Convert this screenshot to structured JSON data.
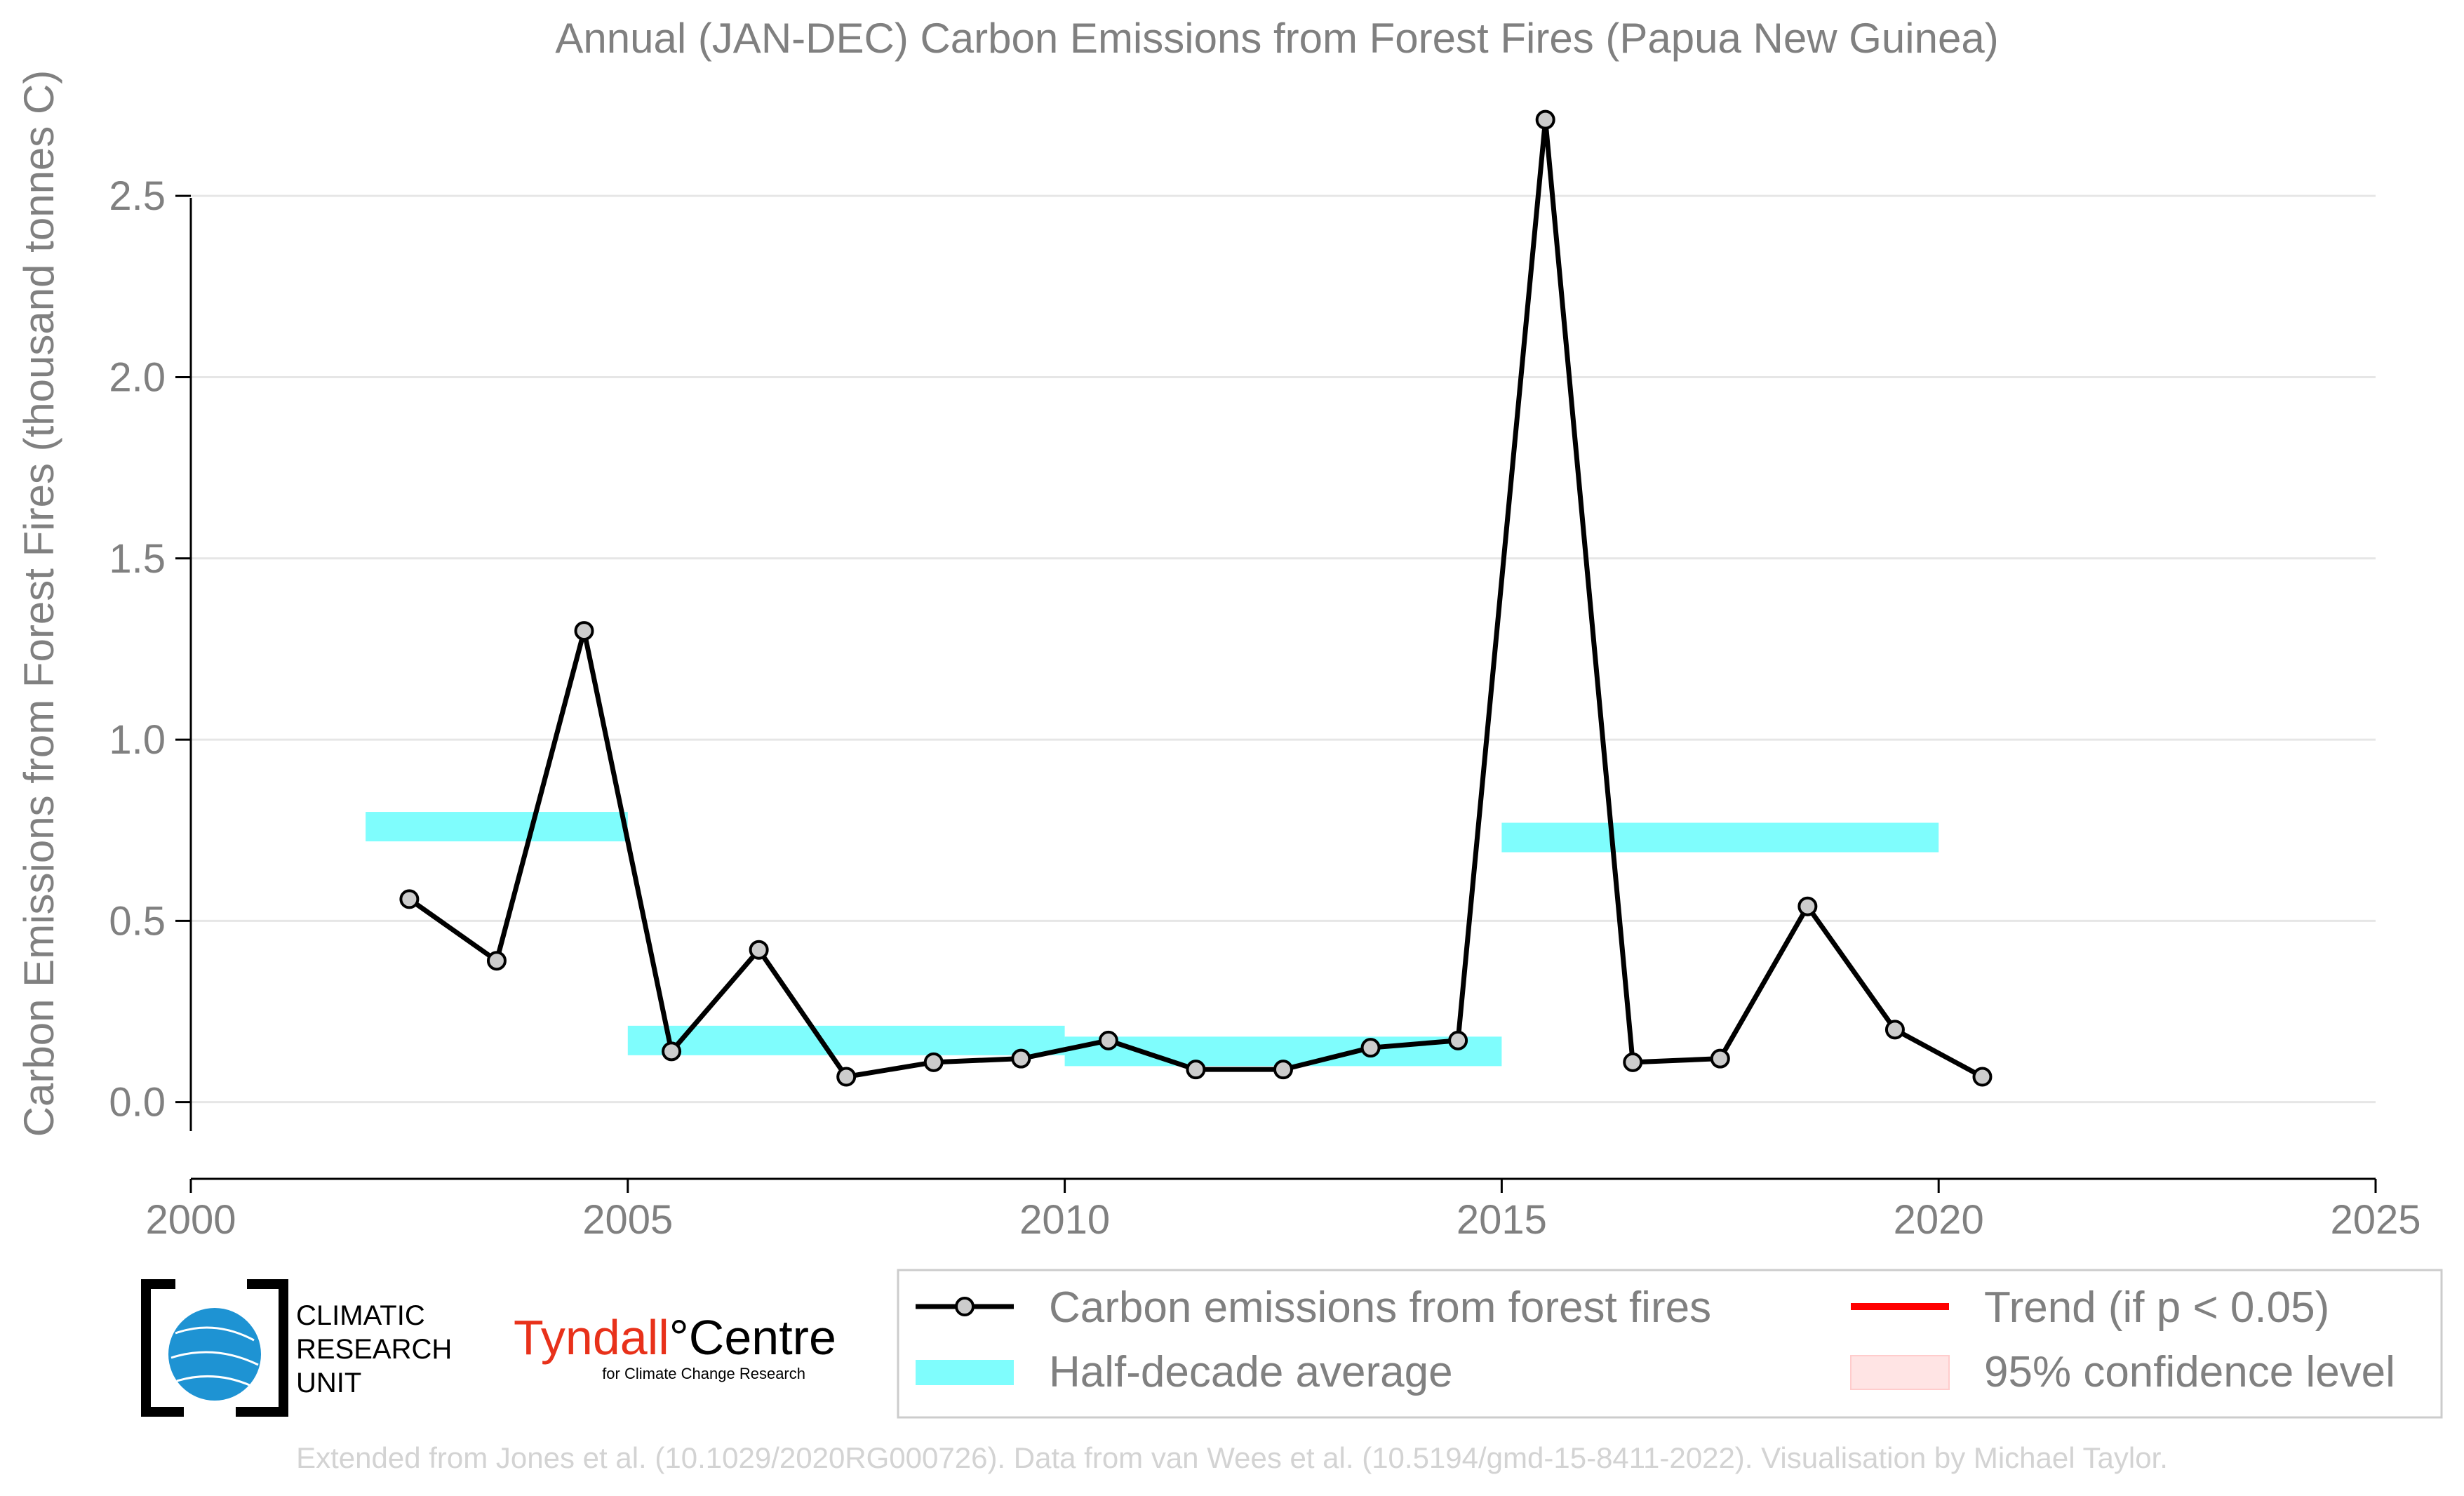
{
  "chart_data": {
    "type": "line",
    "title": "Annual (JAN-DEC) Carbon Emissions from Forest Fires (Papua New Guinea)",
    "xlabel": "",
    "ylabel": "Carbon Emissions from Forest Fires (thousand tonnes C)",
    "xlim": [
      2000,
      2025
    ],
    "ylim": [
      -0.08,
      2.75
    ],
    "x_ticks": [
      2000,
      2005,
      2010,
      2015,
      2020,
      2025
    ],
    "y_ticks": [
      0.0,
      0.5,
      1.0,
      1.5,
      2.0,
      2.5
    ],
    "y_tick_labels": [
      "0.0",
      "0.5",
      "1.0",
      "1.5",
      "2.0",
      "2.5"
    ],
    "grid": "horizontal",
    "legend_position": "bottom-right",
    "series": [
      {
        "name": "Carbon emissions from forest fires",
        "color": "#000000",
        "x": [
          2002.5,
          2003.5,
          2004.5,
          2005.5,
          2006.5,
          2007.5,
          2008.5,
          2009.5,
          2010.5,
          2011.5,
          2012.5,
          2013.5,
          2014.5,
          2015.5,
          2016.5,
          2017.5,
          2018.5,
          2019.5,
          2020.5
        ],
        "y": [
          0.56,
          0.39,
          1.3,
          0.14,
          0.42,
          0.07,
          0.11,
          0.12,
          0.17,
          0.09,
          0.09,
          0.15,
          0.17,
          2.71,
          0.11,
          0.12,
          0.54,
          0.2,
          0.07
        ]
      }
    ],
    "half_decade_average": {
      "name": "Half-decade average",
      "color": "#7ffdfd",
      "segments": [
        {
          "x_start": 2002,
          "x_end": 2005,
          "value": 0.76
        },
        {
          "x_start": 2005,
          "x_end": 2010,
          "value": 0.17
        },
        {
          "x_start": 2010,
          "x_end": 2015,
          "value": 0.14
        },
        {
          "x_start": 2015,
          "x_end": 2020,
          "value": 0.73
        }
      ]
    },
    "legend": [
      {
        "key": "series",
        "label": "Carbon emissions from forest fires",
        "color": "#000000"
      },
      {
        "key": "half",
        "label": "Half-decade average",
        "color": "#7ffdfd"
      },
      {
        "key": "trend",
        "label": "Trend (if p < 0.05)",
        "color": "#ff0000"
      },
      {
        "key": "ci",
        "label": "95% confidence level",
        "color": "#ffe4e4"
      }
    ]
  },
  "logos": {
    "cru_lines": [
      "CLIMATIC",
      "RESEARCH",
      "UNIT"
    ],
    "tyndall_part1": "Tyndall",
    "tyndall_part2": "°Centre",
    "tyndall_sub": "for Climate Change Research"
  },
  "credit": "Extended from Jones et al. (10.1029/2020RG000726). Data from van Wees et al. (10.5194/gmd-15-8411-2022). Visualisation by Michael Taylor."
}
